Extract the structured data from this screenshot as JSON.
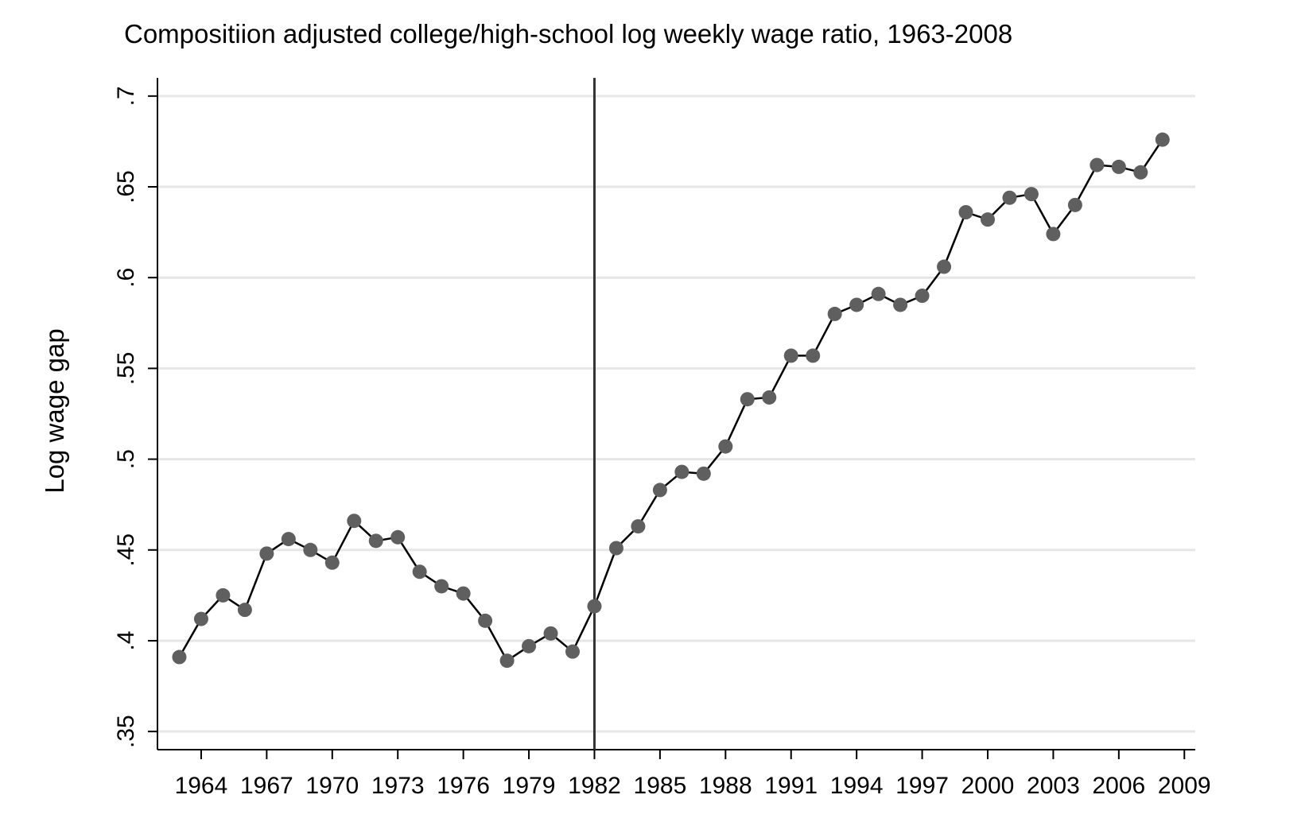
{
  "chart_data": {
    "type": "line",
    "title": "Compositiion adjusted college/high-school log weekly wage ratio, 1963-2008",
    "xlabel": "",
    "ylabel": "Log wage gap",
    "xlim": [
      1962,
      2009.5
    ],
    "ylim": [
      0.34,
      0.71
    ],
    "yticks": [
      0.35,
      0.4,
      0.45,
      0.5,
      0.55,
      0.6,
      0.65,
      0.7
    ],
    "ytick_labels": [
      ".35",
      ".4",
      ".45",
      ".5",
      ".55",
      ".6",
      ".65",
      ".7"
    ],
    "xticks": [
      1964,
      1967,
      1970,
      1973,
      1976,
      1979,
      1982,
      1985,
      1988,
      1991,
      1994,
      1997,
      2000,
      2003,
      2006,
      2009
    ],
    "xtick_labels": [
      "1964",
      "1967",
      "1970",
      "1973",
      "1976",
      "1979",
      "1982",
      "1985",
      "1988",
      "1991",
      "1994",
      "1997",
      "2000",
      "2003",
      "2006",
      "2009"
    ],
    "grid": "horizontal",
    "reference_line_x": 1982,
    "series": [
      {
        "x": [
          1963,
          1964,
          1965,
          1966,
          1967,
          1968,
          1969,
          1970,
          1971,
          1972,
          1973,
          1974,
          1975,
          1976,
          1977,
          1978,
          1979,
          1980,
          1981,
          1982,
          1983,
          1984,
          1985,
          1986,
          1987,
          1988,
          1989,
          1990,
          1991,
          1992,
          1993,
          1994,
          1995,
          1996,
          1997,
          1998,
          1999,
          2000,
          2001,
          2002,
          2003,
          2004,
          2005,
          2006,
          2007,
          2008
        ],
        "y": [
          0.391,
          0.412,
          0.425,
          0.417,
          0.448,
          0.456,
          0.45,
          0.443,
          0.466,
          0.455,
          0.457,
          0.438,
          0.43,
          0.426,
          0.411,
          0.389,
          0.397,
          0.404,
          0.394,
          0.419,
          0.451,
          0.463,
          0.483,
          0.493,
          0.492,
          0.507,
          0.533,
          0.534,
          0.557,
          0.557,
          0.58,
          0.585,
          0.591,
          0.585,
          0.59,
          0.606,
          0.636,
          0.632,
          0.644,
          0.646,
          0.624,
          0.64,
          0.662,
          0.661,
          0.658,
          0.676
        ]
      }
    ],
    "colors": {
      "line": "#000000",
      "marker": "#5f5f5f",
      "grid": "#e6e6e6",
      "reference_line": "#333333"
    }
  }
}
